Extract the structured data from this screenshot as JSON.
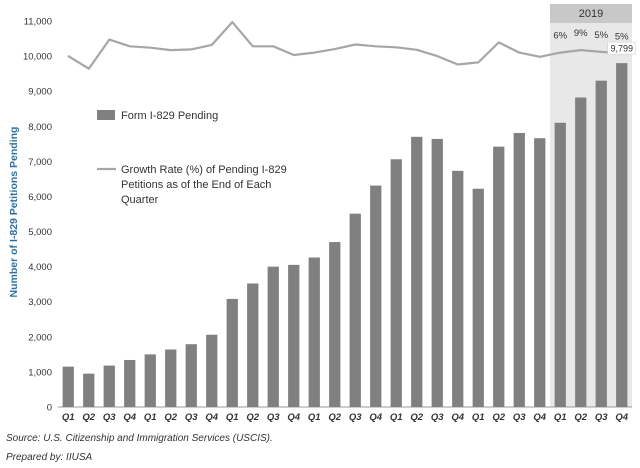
{
  "chart_data": {
    "type": "bar",
    "ylabel": "Number of I-829 Petitions Pending",
    "ylim": [
      0,
      11000
    ],
    "yticks": [
      0,
      1000,
      2000,
      3000,
      4000,
      5000,
      6000,
      7000,
      8000,
      9000,
      10000,
      11000
    ],
    "ytick_labels": [
      "0",
      "1,000",
      "2,000",
      "3,000",
      "4,000",
      "5,000",
      "6,000",
      "7,000",
      "8,000",
      "9,000",
      "10,000",
      "11,000"
    ],
    "categories": [
      "Q1",
      "Q2",
      "Q3",
      "Q4",
      "Q1",
      "Q2",
      "Q3",
      "Q4",
      "Q1",
      "Q2",
      "Q3",
      "Q4",
      "Q1",
      "Q2",
      "Q3",
      "Q4",
      "Q1",
      "Q2",
      "Q3",
      "Q4",
      "Q1",
      "Q2",
      "Q3",
      "Q4",
      "Q1",
      "Q2",
      "Q3",
      "Q4"
    ],
    "grid": false,
    "legend_placement": "upper-left",
    "series": [
      {
        "name": "Form I-829 Pending",
        "type": "bar",
        "color": "#808080",
        "values": [
          1150,
          950,
          1180,
          1340,
          1500,
          1640,
          1790,
          2060,
          3080,
          3520,
          4000,
          4050,
          4260,
          4700,
          5510,
          6310,
          7060,
          7700,
          7640,
          6730,
          6220,
          7420,
          7810,
          7660,
          8100,
          8820,
          9300,
          9799
        ]
      },
      {
        "name": "Growth Rate (%) of Pending I-829 Petitions as of the End of Each Quarter",
        "legend_lines": [
          "Growth Rate (%) of Pending I-829",
          "Petitions as of the End of Each",
          "Quarter"
        ],
        "type": "line",
        "color": "#a6a6a6",
        "values": [
          10000,
          9640,
          10470,
          10280,
          10240,
          10170,
          10190,
          10320,
          10970,
          10280,
          10280,
          10030,
          10100,
          10200,
          10330,
          10280,
          10250,
          10180,
          10000,
          9760,
          9820,
          10390,
          10100,
          9980,
          10100,
          10170,
          10120,
          10080
        ]
      }
    ],
    "highlight": {
      "label": "2019",
      "start_index": 24,
      "end_index": 27,
      "color": "#e8e8e8",
      "header_color": "#c8c8c8"
    },
    "annotations": [
      {
        "index": 24,
        "text": "6%"
      },
      {
        "index": 25,
        "text": "9%"
      },
      {
        "index": 26,
        "text": "5%"
      },
      {
        "index": 27,
        "text": "5%"
      }
    ],
    "bar_value_label": {
      "index": 27,
      "text": "9,799"
    }
  },
  "footer": {
    "source": "Source: U.S. Citizenship and Immigration Services (USCIS).",
    "prepared": "Prepared by: IIUSA"
  }
}
